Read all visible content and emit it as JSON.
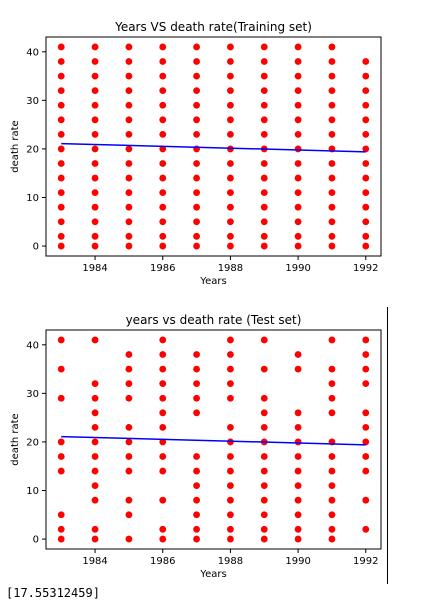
{
  "colors": {
    "points": "#ff0000",
    "line": "#0000ff",
    "axes": "#000000"
  },
  "chart_data": [
    {
      "type": "scatter",
      "title": "Years VS death rate(Training set)",
      "xlabel": "Years",
      "ylabel": "death rate",
      "xlim": [
        1982.55,
        1992.45
      ],
      "ylim": [
        -2.05,
        43.05
      ],
      "xticks": [
        1984,
        1986,
        1988,
        1990,
        1992
      ],
      "yticks": [
        0,
        10,
        20,
        30,
        40
      ],
      "points": [
        [
          1983,
          41
        ],
        [
          1983,
          38
        ],
        [
          1983,
          35
        ],
        [
          1983,
          32
        ],
        [
          1983,
          29
        ],
        [
          1983,
          26
        ],
        [
          1983,
          23
        ],
        [
          1983,
          20
        ],
        [
          1983,
          17
        ],
        [
          1983,
          14
        ],
        [
          1983,
          11
        ],
        [
          1983,
          8
        ],
        [
          1983,
          5
        ],
        [
          1983,
          2
        ],
        [
          1983,
          0
        ],
        [
          1984,
          41
        ],
        [
          1984,
          38
        ],
        [
          1984,
          35
        ],
        [
          1984,
          32
        ],
        [
          1984,
          29
        ],
        [
          1984,
          26
        ],
        [
          1984,
          23
        ],
        [
          1984,
          20
        ],
        [
          1984,
          17
        ],
        [
          1984,
          14
        ],
        [
          1984,
          11
        ],
        [
          1984,
          8
        ],
        [
          1984,
          5
        ],
        [
          1984,
          2
        ],
        [
          1984,
          0
        ],
        [
          1985,
          41
        ],
        [
          1985,
          38
        ],
        [
          1985,
          35
        ],
        [
          1985,
          32
        ],
        [
          1985,
          29
        ],
        [
          1985,
          26
        ],
        [
          1985,
          23
        ],
        [
          1985,
          20
        ],
        [
          1985,
          17
        ],
        [
          1985,
          14
        ],
        [
          1985,
          11
        ],
        [
          1985,
          8
        ],
        [
          1985,
          5
        ],
        [
          1985,
          2
        ],
        [
          1985,
          0
        ],
        [
          1986,
          41
        ],
        [
          1986,
          38
        ],
        [
          1986,
          35
        ],
        [
          1986,
          32
        ],
        [
          1986,
          29
        ],
        [
          1986,
          26
        ],
        [
          1986,
          23
        ],
        [
          1986,
          20
        ],
        [
          1986,
          17
        ],
        [
          1986,
          14
        ],
        [
          1986,
          11
        ],
        [
          1986,
          8
        ],
        [
          1986,
          5
        ],
        [
          1986,
          2
        ],
        [
          1986,
          0
        ],
        [
          1987,
          41
        ],
        [
          1987,
          38
        ],
        [
          1987,
          35
        ],
        [
          1987,
          32
        ],
        [
          1987,
          29
        ],
        [
          1987,
          26
        ],
        [
          1987,
          23
        ],
        [
          1987,
          20
        ],
        [
          1987,
          17
        ],
        [
          1987,
          14
        ],
        [
          1987,
          11
        ],
        [
          1987,
          8
        ],
        [
          1987,
          5
        ],
        [
          1987,
          2
        ],
        [
          1987,
          0
        ],
        [
          1988,
          41
        ],
        [
          1988,
          38
        ],
        [
          1988,
          35
        ],
        [
          1988,
          32
        ],
        [
          1988,
          29
        ],
        [
          1988,
          26
        ],
        [
          1988,
          23
        ],
        [
          1988,
          20
        ],
        [
          1988,
          17
        ],
        [
          1988,
          14
        ],
        [
          1988,
          11
        ],
        [
          1988,
          8
        ],
        [
          1988,
          5
        ],
        [
          1988,
          2
        ],
        [
          1988,
          0
        ],
        [
          1989,
          41
        ],
        [
          1989,
          38
        ],
        [
          1989,
          35
        ],
        [
          1989,
          32
        ],
        [
          1989,
          29
        ],
        [
          1989,
          26
        ],
        [
          1989,
          23
        ],
        [
          1989,
          20
        ],
        [
          1989,
          17
        ],
        [
          1989,
          14
        ],
        [
          1989,
          11
        ],
        [
          1989,
          8
        ],
        [
          1989,
          5
        ],
        [
          1989,
          2
        ],
        [
          1989,
          0
        ],
        [
          1990,
          41
        ],
        [
          1990,
          38
        ],
        [
          1990,
          35
        ],
        [
          1990,
          32
        ],
        [
          1990,
          29
        ],
        [
          1990,
          26
        ],
        [
          1990,
          23
        ],
        [
          1990,
          20
        ],
        [
          1990,
          17
        ],
        [
          1990,
          14
        ],
        [
          1990,
          11
        ],
        [
          1990,
          8
        ],
        [
          1990,
          5
        ],
        [
          1990,
          2
        ],
        [
          1990,
          0
        ],
        [
          1991,
          41
        ],
        [
          1991,
          38
        ],
        [
          1991,
          35
        ],
        [
          1991,
          32
        ],
        [
          1991,
          29
        ],
        [
          1991,
          26
        ],
        [
          1991,
          23
        ],
        [
          1991,
          20
        ],
        [
          1991,
          17
        ],
        [
          1991,
          14
        ],
        [
          1991,
          11
        ],
        [
          1991,
          8
        ],
        [
          1991,
          5
        ],
        [
          1991,
          2
        ],
        [
          1991,
          0
        ],
        [
          1992,
          38
        ],
        [
          1992,
          35
        ],
        [
          1992,
          32
        ],
        [
          1992,
          29
        ],
        [
          1992,
          26
        ],
        [
          1992,
          23
        ],
        [
          1992,
          20
        ],
        [
          1992,
          17
        ],
        [
          1992,
          14
        ],
        [
          1992,
          11
        ],
        [
          1992,
          8
        ],
        [
          1992,
          5
        ],
        [
          1992,
          2
        ],
        [
          1992,
          0
        ]
      ],
      "regression_line": {
        "x": [
          1983,
          1992
        ],
        "y": [
          21.1,
          19.4
        ]
      }
    },
    {
      "type": "scatter",
      "title": "years vs death rate (Test set)",
      "xlabel": "Years",
      "ylabel": "death rate",
      "xlim": [
        1982.55,
        1992.45
      ],
      "ylim": [
        -2.05,
        43.05
      ],
      "xticks": [
        1984,
        1986,
        1988,
        1990,
        1992
      ],
      "yticks": [
        0,
        10,
        20,
        30,
        40
      ],
      "points": [
        [
          1983,
          41
        ],
        [
          1983,
          35
        ],
        [
          1983,
          29
        ],
        [
          1983,
          20
        ],
        [
          1983,
          17
        ],
        [
          1983,
          14
        ],
        [
          1983,
          5
        ],
        [
          1983,
          2
        ],
        [
          1983,
          0
        ],
        [
          1984,
          41
        ],
        [
          1984,
          32
        ],
        [
          1984,
          29
        ],
        [
          1984,
          26
        ],
        [
          1984,
          23
        ],
        [
          1984,
          20
        ],
        [
          1984,
          17
        ],
        [
          1984,
          14
        ],
        [
          1984,
          11
        ],
        [
          1984,
          8
        ],
        [
          1984,
          2
        ],
        [
          1984,
          0
        ],
        [
          1985,
          38
        ],
        [
          1985,
          35
        ],
        [
          1985,
          32
        ],
        [
          1985,
          29
        ],
        [
          1985,
          23
        ],
        [
          1985,
          20
        ],
        [
          1985,
          17
        ],
        [
          1985,
          14
        ],
        [
          1985,
          8
        ],
        [
          1985,
          5
        ],
        [
          1985,
          0
        ],
        [
          1986,
          41
        ],
        [
          1986,
          38
        ],
        [
          1986,
          35
        ],
        [
          1986,
          32
        ],
        [
          1986,
          29
        ],
        [
          1986,
          26
        ],
        [
          1986,
          23
        ],
        [
          1986,
          20
        ],
        [
          1986,
          17
        ],
        [
          1986,
          14
        ],
        [
          1986,
          8
        ],
        [
          1986,
          2
        ],
        [
          1986,
          0
        ],
        [
          1987,
          38
        ],
        [
          1987,
          35
        ],
        [
          1987,
          32
        ],
        [
          1987,
          29
        ],
        [
          1987,
          26
        ],
        [
          1987,
          17
        ],
        [
          1987,
          14
        ],
        [
          1987,
          11
        ],
        [
          1987,
          8
        ],
        [
          1987,
          5
        ],
        [
          1987,
          2
        ],
        [
          1987,
          0
        ],
        [
          1988,
          41
        ],
        [
          1988,
          38
        ],
        [
          1988,
          35
        ],
        [
          1988,
          32
        ],
        [
          1988,
          29
        ],
        [
          1988,
          23
        ],
        [
          1988,
          20
        ],
        [
          1988,
          17
        ],
        [
          1988,
          14
        ],
        [
          1988,
          11
        ],
        [
          1988,
          8
        ],
        [
          1988,
          5
        ],
        [
          1988,
          2
        ],
        [
          1988,
          0
        ],
        [
          1989,
          41
        ],
        [
          1989,
          35
        ],
        [
          1989,
          29
        ],
        [
          1989,
          26
        ],
        [
          1989,
          23
        ],
        [
          1989,
          20
        ],
        [
          1989,
          17
        ],
        [
          1989,
          14
        ],
        [
          1989,
          11
        ],
        [
          1989,
          8
        ],
        [
          1989,
          5
        ],
        [
          1989,
          2
        ],
        [
          1989,
          0
        ],
        [
          1990,
          38
        ],
        [
          1990,
          35
        ],
        [
          1990,
          26
        ],
        [
          1990,
          23
        ],
        [
          1990,
          20
        ],
        [
          1990,
          17
        ],
        [
          1990,
          14
        ],
        [
          1990,
          11
        ],
        [
          1990,
          8
        ],
        [
          1990,
          5
        ],
        [
          1990,
          2
        ],
        [
          1990,
          0
        ],
        [
          1991,
          41
        ],
        [
          1991,
          35
        ],
        [
          1991,
          32
        ],
        [
          1991,
          29
        ],
        [
          1991,
          26
        ],
        [
          1991,
          20
        ],
        [
          1991,
          17
        ],
        [
          1991,
          14
        ],
        [
          1991,
          11
        ],
        [
          1991,
          8
        ],
        [
          1991,
          5
        ],
        [
          1991,
          2
        ],
        [
          1991,
          0
        ],
        [
          1992,
          41
        ],
        [
          1992,
          38
        ],
        [
          1992,
          35
        ],
        [
          1992,
          32
        ],
        [
          1992,
          26
        ],
        [
          1992,
          23
        ],
        [
          1992,
          20
        ],
        [
          1992,
          17
        ],
        [
          1992,
          14
        ],
        [
          1992,
          8
        ],
        [
          1992,
          2
        ]
      ],
      "regression_line": {
        "x": [
          1983,
          1992
        ],
        "y": [
          21.1,
          19.4
        ]
      }
    }
  ],
  "output": {
    "text": "[17.55312459]"
  }
}
